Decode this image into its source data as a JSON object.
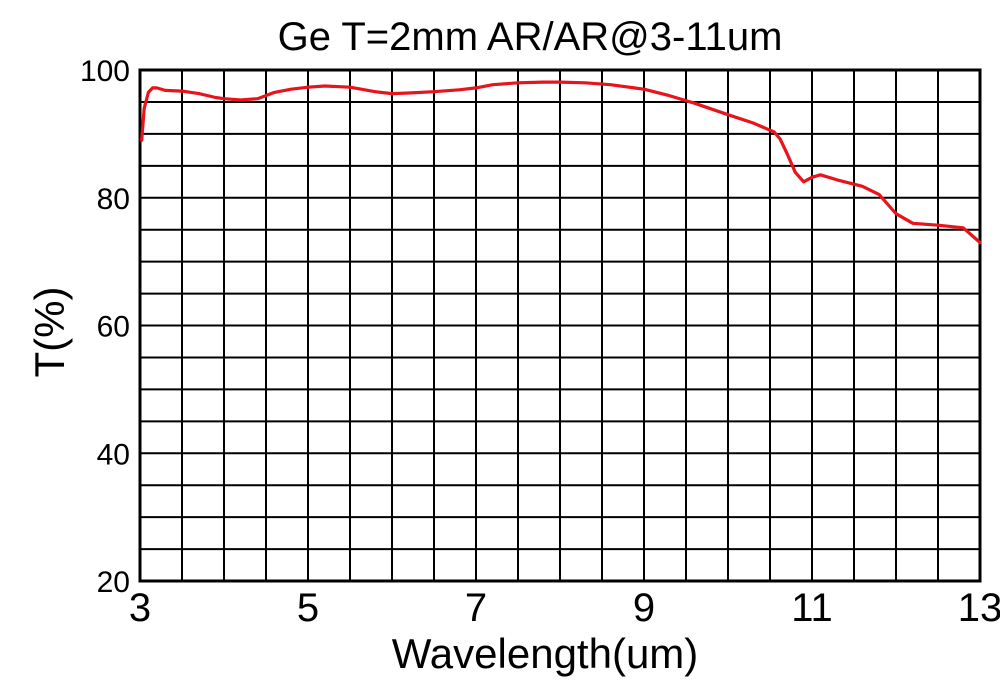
{
  "chart_data": {
    "type": "line",
    "title": "Ge T=2mm AR/AR@3-11um",
    "xlabel": "Wavelength(um)",
    "ylabel": "T(%)",
    "xlim": [
      3,
      13
    ],
    "ylim": [
      20,
      100
    ],
    "xticks": [
      3,
      5,
      7,
      9,
      11,
      13
    ],
    "yticks": [
      20,
      40,
      60,
      80,
      100
    ],
    "x_minor_step": 0.5,
    "y_minor_step": 5,
    "grid": true,
    "series": [
      {
        "color": "#e8141b",
        "x": [
          3.02,
          3.05,
          3.1,
          3.15,
          3.2,
          3.3,
          3.5,
          3.7,
          3.9,
          4.0,
          4.2,
          4.4,
          4.6,
          4.8,
          5.0,
          5.2,
          5.5,
          5.8,
          6.0,
          6.2,
          6.5,
          6.8,
          7.0,
          7.2,
          7.5,
          7.8,
          8.0,
          8.3,
          8.6,
          9.0,
          9.3,
          9.6,
          10.0,
          10.3,
          10.55,
          10.62,
          10.7,
          10.8,
          10.9,
          11.0,
          11.1,
          11.3,
          11.6,
          11.8,
          12.0,
          12.2,
          12.5,
          12.8,
          13.0
        ],
        "y": [
          89,
          94,
          96.5,
          97.2,
          97.2,
          96.8,
          96.7,
          96.3,
          95.7,
          95.5,
          95.3,
          95.5,
          96.5,
          97.0,
          97.3,
          97.5,
          97.3,
          96.6,
          96.3,
          96.4,
          96.6,
          96.9,
          97.2,
          97.7,
          98.0,
          98.1,
          98.1,
          98.0,
          97.7,
          97.0,
          96.0,
          94.8,
          93.0,
          91.7,
          90.3,
          89.2,
          87.0,
          84.0,
          82.5,
          83.2,
          83.6,
          82.8,
          81.8,
          80.5,
          77.5,
          76.0,
          75.7,
          75.3,
          73.0
        ]
      }
    ]
  }
}
